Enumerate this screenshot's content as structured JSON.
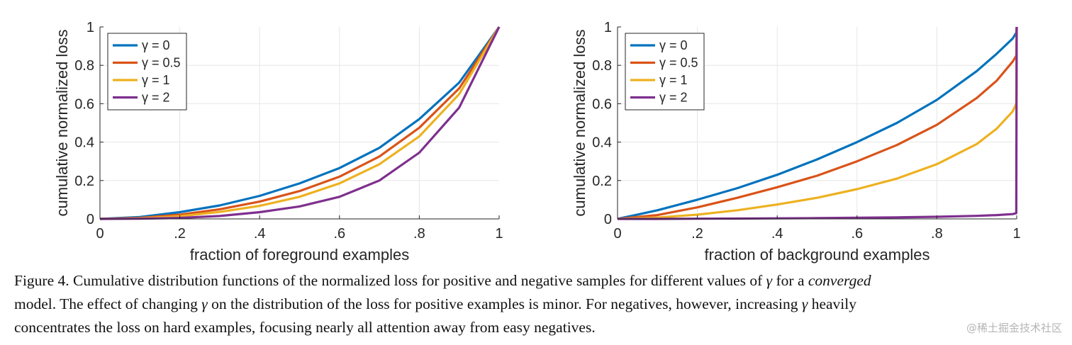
{
  "chart_data": [
    {
      "type": "line",
      "xlabel": "fraction of foreground examples",
      "ylabel": "cumulative normalized loss",
      "xlim": [
        0,
        1
      ],
      "ylim": [
        0,
        1
      ],
      "xticks": [
        "0",
        ".2",
        ".4",
        ".6",
        ".8",
        "1"
      ],
      "yticks": [
        "0",
        "0.2",
        "0.4",
        "0.6",
        "0.8",
        "1"
      ],
      "grid": true,
      "legend_position": "top-left",
      "x": [
        0,
        0.1,
        0.2,
        0.3,
        0.4,
        0.5,
        0.6,
        0.7,
        0.8,
        0.9,
        1.0
      ],
      "series": [
        {
          "name": "γ = 0",
          "color": "#0072bd",
          "values": [
            0,
            0.01,
            0.035,
            0.07,
            0.12,
            0.185,
            0.265,
            0.37,
            0.52,
            0.71,
            1.0
          ]
        },
        {
          "name": "γ = 0.5",
          "color": "#d95319",
          "values": [
            0,
            0.005,
            0.022,
            0.05,
            0.09,
            0.145,
            0.22,
            0.325,
            0.475,
            0.68,
            1.0
          ]
        },
        {
          "name": "γ = 1",
          "color": "#edb120",
          "values": [
            0,
            0.003,
            0.014,
            0.036,
            0.068,
            0.115,
            0.185,
            0.285,
            0.43,
            0.65,
            1.0
          ]
        },
        {
          "name": "γ = 2",
          "color": "#7e2f8e",
          "values": [
            0,
            0.001,
            0.005,
            0.015,
            0.035,
            0.065,
            0.115,
            0.2,
            0.345,
            0.58,
            1.0
          ]
        }
      ]
    },
    {
      "type": "line",
      "xlabel": "fraction of background examples",
      "ylabel": "cumulative normalized loss",
      "xlim": [
        0,
        1
      ],
      "ylim": [
        0,
        1
      ],
      "xticks": [
        "0",
        ".2",
        ".4",
        ".6",
        ".8",
        "1"
      ],
      "yticks": [
        "0",
        "0.2",
        "0.4",
        "0.6",
        "0.8",
        "1"
      ],
      "grid": true,
      "legend_position": "top-left",
      "x": [
        0,
        0.1,
        0.2,
        0.3,
        0.4,
        0.5,
        0.6,
        0.7,
        0.8,
        0.9,
        0.95,
        0.99,
        0.999,
        1.0
      ],
      "series": [
        {
          "name": "γ = 0",
          "color": "#0072bd",
          "values": [
            0,
            0.045,
            0.1,
            0.16,
            0.23,
            0.31,
            0.4,
            0.5,
            0.62,
            0.77,
            0.86,
            0.94,
            0.97,
            1.0
          ]
        },
        {
          "name": "γ = 0.5",
          "color": "#d95319",
          "values": [
            0,
            0.02,
            0.06,
            0.11,
            0.165,
            0.225,
            0.3,
            0.385,
            0.49,
            0.63,
            0.72,
            0.82,
            0.85,
            1.0
          ]
        },
        {
          "name": "γ = 1",
          "color": "#edb120",
          "values": [
            0,
            0.007,
            0.022,
            0.045,
            0.075,
            0.11,
            0.155,
            0.21,
            0.285,
            0.39,
            0.47,
            0.56,
            0.6,
            1.0
          ]
        },
        {
          "name": "γ = 2",
          "color": "#7e2f8e",
          "values": [
            0,
            0,
            0.001,
            0.002,
            0.003,
            0.004,
            0.006,
            0.008,
            0.011,
            0.016,
            0.02,
            0.025,
            0.03,
            1.0
          ]
        }
      ]
    }
  ],
  "caption": {
    "line1_before_gamma": "Figure 4. Cumulative distribution functions of the normalized loss for positive and negative samples for different values of ",
    "gamma_symbol": "γ",
    "line1_after_gamma": " for a ",
    "line1_italic": "converged",
    "line2_before_gamma": "model. The effect of changing ",
    "line2_after_gamma": " on the distribution of the loss for positive examples is minor. For negatives, however, increasing ",
    "line2_end": " heavily",
    "line3": "concentrates the loss on hard examples, focusing nearly all attention away from easy negatives."
  },
  "watermark": "@稀土掘金技术社区"
}
